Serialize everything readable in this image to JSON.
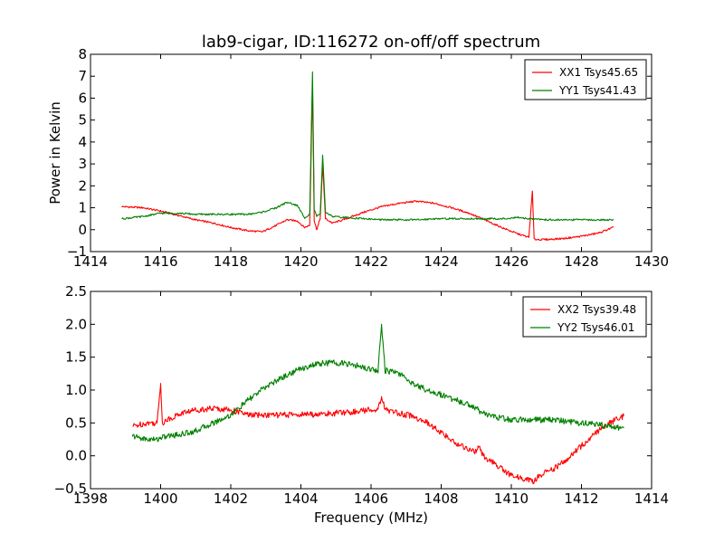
{
  "chart_data": [
    {
      "type": "line",
      "title": "lab9-cigar, ID:116272 on-off/off spectrum",
      "xlabel": "",
      "ylabel": "Power in Kelvin",
      "xlim": [
        1414,
        1430
      ],
      "ylim": [
        -1,
        8
      ],
      "xticks": [
        "1414",
        "1416",
        "1418",
        "1420",
        "1422",
        "1424",
        "1426",
        "1428",
        "1430"
      ],
      "yticks": [
        "−1",
        "0",
        "1",
        "2",
        "3",
        "4",
        "5",
        "6",
        "7",
        "8"
      ],
      "grid": false,
      "legend_position": "top-right",
      "series": [
        {
          "name": "XX1 Tsys45.65",
          "color": "#ff0000",
          "x": [
            1414.9,
            1415.5,
            1416.0,
            1416.5,
            1417.0,
            1417.5,
            1418.0,
            1418.5,
            1418.9,
            1419.3,
            1419.6,
            1419.9,
            1420.1,
            1420.25,
            1420.33,
            1420.38,
            1420.45,
            1420.55,
            1420.62,
            1420.7,
            1420.9,
            1421.3,
            1421.8,
            1422.3,
            1422.8,
            1423.3,
            1423.8,
            1424.3,
            1424.8,
            1425.3,
            1425.8,
            1426.2,
            1426.5,
            1426.6,
            1426.65,
            1426.7,
            1427.0,
            1427.5,
            1428.0,
            1428.5,
            1428.9
          ],
          "y": [
            1.05,
            1.0,
            0.85,
            0.65,
            0.45,
            0.3,
            0.1,
            -0.05,
            -0.1,
            0.2,
            0.45,
            0.4,
            0.1,
            0.2,
            6.5,
            0.4,
            0.0,
            0.5,
            3.0,
            0.5,
            0.3,
            0.5,
            0.8,
            1.05,
            1.2,
            1.3,
            1.2,
            1.0,
            0.75,
            0.4,
            0.05,
            -0.2,
            -0.35,
            1.75,
            -0.4,
            -0.45,
            -0.45,
            -0.4,
            -0.3,
            -0.15,
            0.1
          ]
        },
        {
          "name": "YY1 Tsys41.43",
          "color": "#008000",
          "x": [
            1414.9,
            1415.5,
            1416.0,
            1416.5,
            1417.0,
            1417.5,
            1418.0,
            1418.5,
            1418.9,
            1419.3,
            1419.6,
            1419.9,
            1420.1,
            1420.25,
            1420.33,
            1420.38,
            1420.45,
            1420.55,
            1420.62,
            1420.7,
            1420.9,
            1421.3,
            1421.8,
            1422.3,
            1422.8,
            1423.3,
            1423.8,
            1424.3,
            1424.8,
            1425.3,
            1425.8,
            1426.2,
            1426.5,
            1426.6,
            1426.65,
            1426.7,
            1427.0,
            1427.5,
            1428.0,
            1428.5,
            1428.9
          ],
          "y": [
            0.5,
            0.6,
            0.75,
            0.75,
            0.7,
            0.7,
            0.7,
            0.7,
            0.8,
            1.0,
            1.25,
            1.1,
            0.55,
            0.7,
            7.2,
            0.9,
            0.6,
            0.7,
            3.4,
            0.8,
            0.6,
            0.55,
            0.5,
            0.45,
            0.45,
            0.45,
            0.5,
            0.5,
            0.5,
            0.5,
            0.5,
            0.55,
            0.5,
            0.5,
            0.5,
            0.5,
            0.45,
            0.45,
            0.45,
            0.45,
            0.45
          ]
        }
      ]
    },
    {
      "type": "line",
      "title": "",
      "xlabel": "Frequency (MHz)",
      "ylabel": "",
      "xlim": [
        1398,
        1414
      ],
      "ylim": [
        -0.5,
        2.5
      ],
      "xticks": [
        "1398",
        "1400",
        "1402",
        "1404",
        "1406",
        "1408",
        "1410",
        "1412",
        "1414"
      ],
      "yticks": [
        "−0.5",
        "0.0",
        "0.5",
        "1.0",
        "1.5",
        "2.0",
        "2.5"
      ],
      "grid": false,
      "legend_position": "top-right",
      "series": [
        {
          "name": "XX2 Tsys39.48",
          "color": "#ff0000",
          "x": [
            1399.2,
            1399.6,
            1399.9,
            1400.0,
            1400.05,
            1400.2,
            1400.6,
            1401.0,
            1401.5,
            1402.0,
            1402.5,
            1403.0,
            1403.5,
            1404.0,
            1404.5,
            1405.0,
            1405.5,
            1406.0,
            1406.2,
            1406.3,
            1406.4,
            1406.8,
            1407.2,
            1407.6,
            1408.0,
            1408.4,
            1408.8,
            1409.0,
            1409.05,
            1409.2,
            1409.6,
            1410.0,
            1410.4,
            1410.6,
            1410.8,
            1411.2,
            1411.6,
            1412.0,
            1412.4,
            1412.8,
            1413.2
          ],
          "y": [
            0.45,
            0.5,
            0.5,
            1.1,
            0.5,
            0.55,
            0.65,
            0.7,
            0.72,
            0.7,
            0.62,
            0.62,
            0.62,
            0.63,
            0.63,
            0.65,
            0.67,
            0.7,
            0.72,
            0.9,
            0.7,
            0.65,
            0.6,
            0.5,
            0.35,
            0.2,
            0.1,
            0.05,
            0.15,
            0.0,
            -0.15,
            -0.3,
            -0.35,
            -0.4,
            -0.3,
            -0.2,
            -0.05,
            0.15,
            0.35,
            0.5,
            0.6
          ]
        },
        {
          "name": "YY2 Tsys46.01",
          "color": "#008000",
          "x": [
            1399.2,
            1399.6,
            1399.9,
            1400.0,
            1400.05,
            1400.2,
            1400.6,
            1401.0,
            1401.5,
            1402.0,
            1402.5,
            1403.0,
            1403.5,
            1404.0,
            1404.5,
            1405.0,
            1405.5,
            1406.0,
            1406.2,
            1406.3,
            1406.4,
            1406.8,
            1407.2,
            1407.6,
            1408.0,
            1408.4,
            1408.8,
            1409.0,
            1409.05,
            1409.2,
            1409.6,
            1410.0,
            1410.4,
            1410.6,
            1410.8,
            1411.2,
            1411.6,
            1412.0,
            1412.4,
            1412.8,
            1413.2
          ],
          "y": [
            0.3,
            0.25,
            0.25,
            0.28,
            0.28,
            0.3,
            0.33,
            0.38,
            0.5,
            0.62,
            0.85,
            1.05,
            1.2,
            1.33,
            1.4,
            1.42,
            1.38,
            1.32,
            1.3,
            2.0,
            1.3,
            1.25,
            1.1,
            1.0,
            0.93,
            0.85,
            0.78,
            0.72,
            0.7,
            0.65,
            0.58,
            0.55,
            0.55,
            0.55,
            0.55,
            0.55,
            0.52,
            0.5,
            0.48,
            0.45,
            0.42
          ]
        }
      ]
    }
  ]
}
